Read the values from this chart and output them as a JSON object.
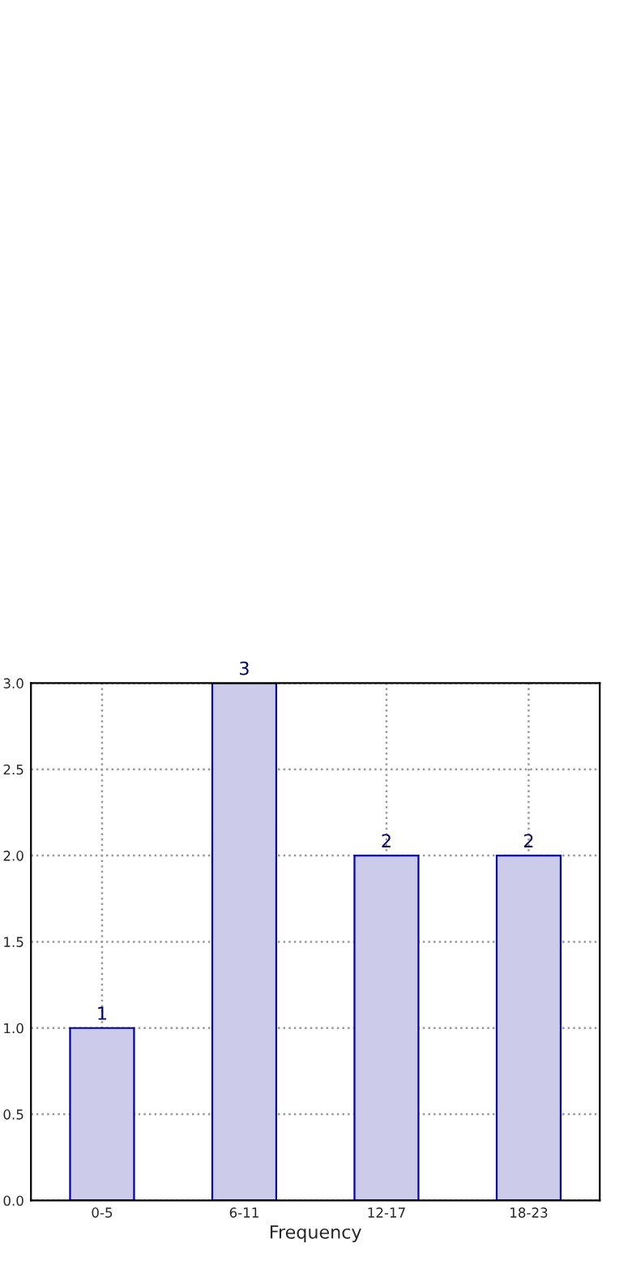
{
  "chart_data": {
    "type": "bar",
    "xlabel": "Frequency",
    "categories": [
      "0-5",
      "6-11",
      "12-17",
      "18-23"
    ],
    "values": [
      1,
      3,
      2,
      2
    ],
    "color": "#ccccea",
    "ylim": [
      0,
      3
    ],
    "yticks": [
      {
        "value": 0,
        "label": "0.0"
      },
      {
        "value": 0.5,
        "label": "0.5"
      },
      {
        "value": 1,
        "label": "1.0"
      },
      {
        "value": 1.5,
        "label": "1.5"
      },
      {
        "value": 2,
        "label": "2.0"
      },
      {
        "value": 2.5,
        "label": "2.5"
      },
      {
        "value": 3,
        "label": "3.0"
      }
    ],
    "grid": true,
    "data_labels": true
  }
}
